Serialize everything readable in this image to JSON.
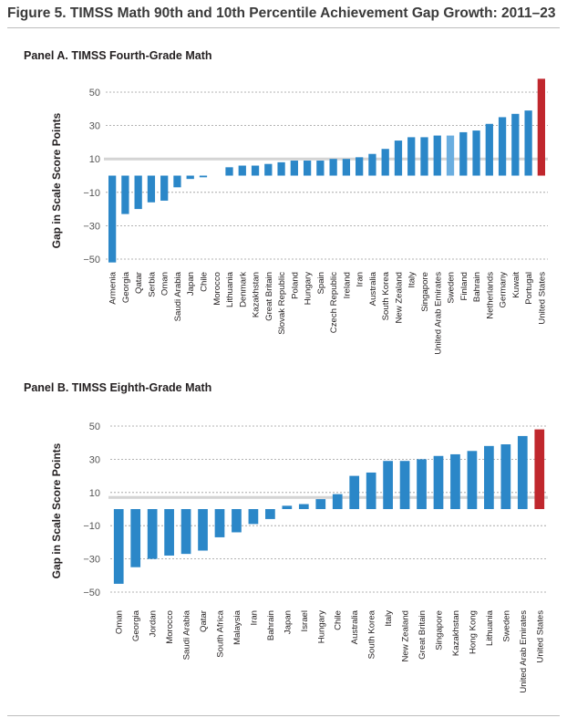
{
  "figure": {
    "title": "Figure 5. TIMSS Math 90th and 10th Percentile Achievement Gap Growth: 2011–23"
  },
  "colors": {
    "bar": "#2b87c8",
    "highlight": "#c0272d",
    "light_bar": "#6aaee0",
    "reference_line": "#d4d4d4",
    "grid": "#9a9a9a",
    "text": "#231f20"
  },
  "chart_data": [
    {
      "type": "bar",
      "title": "Panel A. TIMSS Fourth-Grade Math",
      "ylabel": "Gap in Scale Score Points",
      "xlabel": "",
      "ylim": [
        -52,
        60
      ],
      "yticks": [
        50,
        30,
        10,
        -10,
        -30,
        -50
      ],
      "reference_line": 10,
      "grid": "dashed horizontal",
      "categories": [
        "Armenia",
        "Georgia",
        "Qatar",
        "Serbia",
        "Oman",
        "Saudi Arabia",
        "Japan",
        "Chile",
        "Morocco",
        "Lithuania",
        "Denmark",
        "Kazakhstan",
        "Great Britain",
        "Slovak Republic",
        "Poland",
        "Hungary",
        "Spain",
        "Czech Republic",
        "Ireland",
        "Iran",
        "Australia",
        "South Korea",
        "New Zealand",
        "Italy",
        "Singapore",
        "United Arab Emirates",
        "Sweden",
        "Finland",
        "Bahrain",
        "Netherlands",
        "Germany",
        "Kuwait",
        "Portugal",
        "United States"
      ],
      "values": [
        -52,
        -23,
        -20,
        -16,
        -15,
        -7,
        -2,
        -1,
        0,
        5,
        6,
        6,
        7,
        8,
        9,
        9,
        9,
        10,
        10,
        11,
        13,
        16,
        21,
        23,
        23,
        24,
        24,
        26,
        27,
        31,
        35,
        37,
        39,
        58
      ],
      "highlight": [
        "United States"
      ],
      "light": [
        "Sweden"
      ]
    },
    {
      "type": "bar",
      "title": "Panel B. TIMSS Eighth-Grade Math",
      "ylabel": "Gap in Scale Score Points",
      "xlabel": "",
      "ylim": [
        -50,
        50
      ],
      "yticks": [
        50,
        30,
        10,
        -10,
        -30,
        -50
      ],
      "reference_line": 7,
      "grid": "dashed horizontal",
      "categories": [
        "Oman",
        "Georgia",
        "Jordan",
        "Morocco",
        "Saudi Arabia",
        "Qatar",
        "South Africa",
        "Malaysia",
        "Iran",
        "Bahrain",
        "Japan",
        "Israel",
        "Hungary",
        "Chile",
        "Australia",
        "South Korea",
        "Italy",
        "New Zealand",
        "Great Britain",
        "Singapore",
        "Kazakhstan",
        "Hong Kong",
        "Lithuania",
        "Sweden",
        "United Arab Emirates",
        "United States"
      ],
      "values": [
        -45,
        -35,
        -30,
        -28,
        -27,
        -25,
        -17,
        -14,
        -9,
        -6,
        2,
        3,
        6,
        9,
        20,
        22,
        29,
        29,
        30,
        32,
        33,
        35,
        38,
        39,
        44,
        48
      ],
      "highlight": [
        "United States"
      ],
      "light": []
    }
  ]
}
